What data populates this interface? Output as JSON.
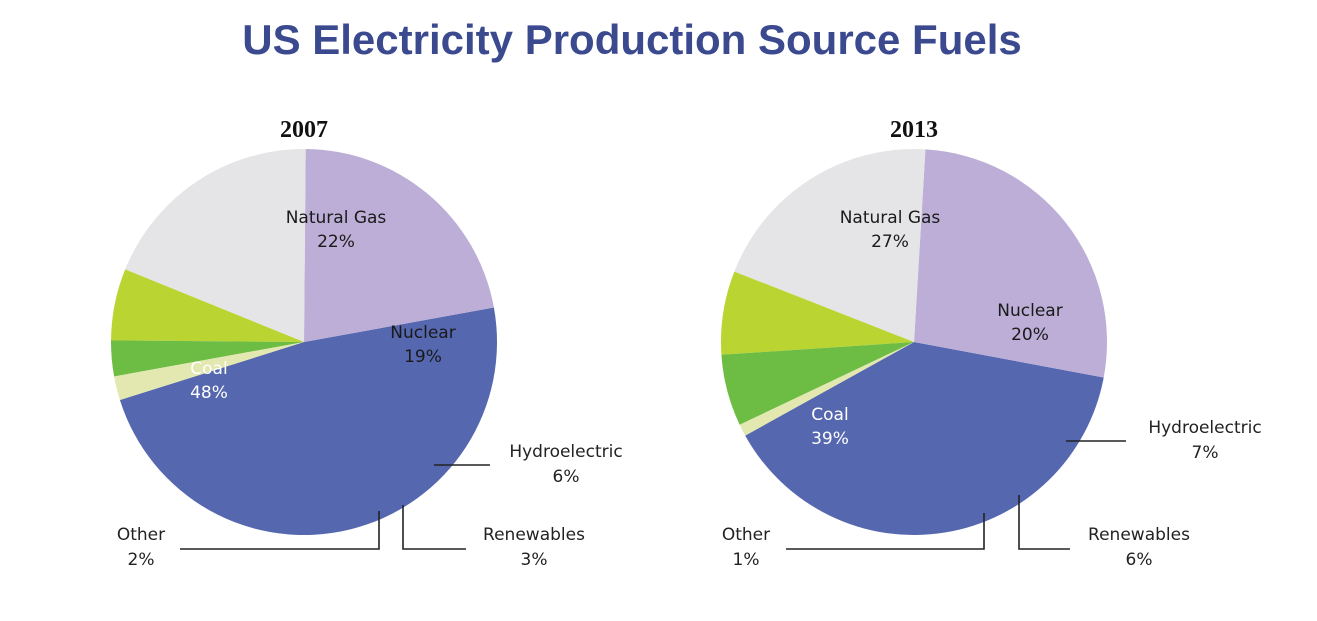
{
  "title": "US Electricity Production Source Fuels",
  "colors": {
    "title": "#3b4a8f",
    "Coal": "#5567ae",
    "Natural Gas": "#bcaed6",
    "Nuclear": "#e5e5e7",
    "Hydroelectric": "#bad532",
    "Renewables": "#6dbd45",
    "Other": "#e2e8b0"
  },
  "chart_data": [
    {
      "type": "pie",
      "title": "2007",
      "unit": "%",
      "slices": [
        {
          "name": "Coal",
          "value": 48
        },
        {
          "name": "Natural Gas",
          "value": 22
        },
        {
          "name": "Nuclear",
          "value": 19
        },
        {
          "name": "Hydroelectric",
          "value": 6
        },
        {
          "name": "Renewables",
          "value": 3
        },
        {
          "name": "Other",
          "value": 2
        }
      ]
    },
    {
      "type": "pie",
      "title": "2013",
      "unit": "%",
      "slices": [
        {
          "name": "Coal",
          "value": 39
        },
        {
          "name": "Natural Gas",
          "value": 27
        },
        {
          "name": "Nuclear",
          "value": 20
        },
        {
          "name": "Hydroelectric",
          "value": 7
        },
        {
          "name": "Renewables",
          "value": 6
        },
        {
          "name": "Other",
          "value": 1
        }
      ]
    }
  ]
}
